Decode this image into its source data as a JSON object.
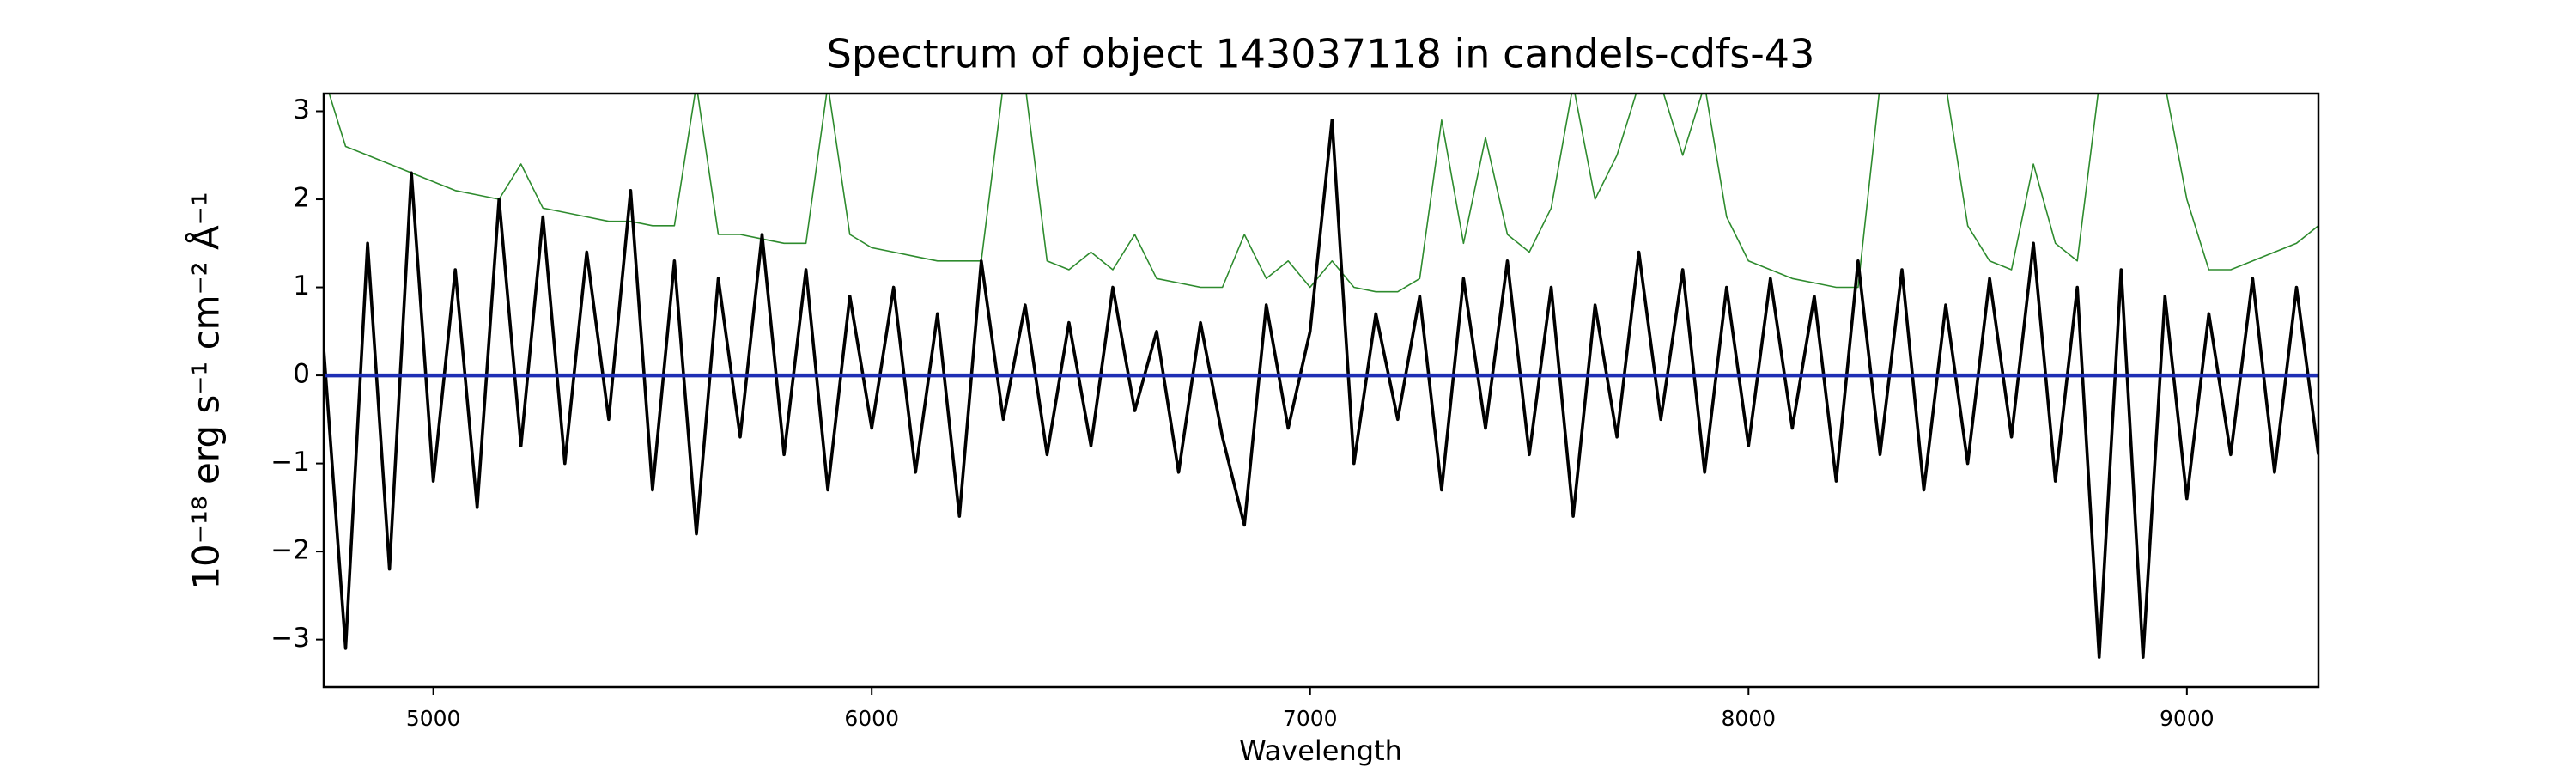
{
  "chart_data": {
    "type": "line",
    "title": "Spectrum of object 143037118 in candels-cdfs-43",
    "xlabel": "Wavelength",
    "ylabel": "10⁻¹⁸ erg s⁻¹ cm⁻² Å⁻¹",
    "x": [
      4750,
      4800,
      4850,
      4900,
      4950,
      5000,
      5050,
      5100,
      5150,
      5200,
      5250,
      5300,
      5350,
      5400,
      5450,
      5500,
      5550,
      5600,
      5650,
      5700,
      5750,
      5800,
      5850,
      5900,
      5950,
      6000,
      6050,
      6100,
      6150,
      6200,
      6250,
      6300,
      6350,
      6400,
      6450,
      6500,
      6550,
      6600,
      6650,
      6700,
      6750,
      6800,
      6850,
      6900,
      6950,
      7000,
      7050,
      7100,
      7150,
      7200,
      7250,
      7300,
      7350,
      7400,
      7450,
      7500,
      7550,
      7600,
      7650,
      7700,
      7750,
      7800,
      7850,
      7900,
      7950,
      8000,
      8050,
      8100,
      8150,
      8200,
      8250,
      8300,
      8350,
      8400,
      8450,
      8500,
      8550,
      8600,
      8650,
      8700,
      8750,
      8800,
      8850,
      8900,
      8950,
      9000,
      9050,
      9100,
      9150,
      9200,
      9250,
      9300
    ],
    "series": [
      {
        "color": "#2e8b2e",
        "width": 1.6,
        "values": [
          3.4,
          2.6,
          2.5,
          2.4,
          2.3,
          2.2,
          2.1,
          2.05,
          2.0,
          2.4,
          1.9,
          1.85,
          1.8,
          1.75,
          1.75,
          1.7,
          1.7,
          3.3,
          1.6,
          1.6,
          1.55,
          1.5,
          1.5,
          3.3,
          1.6,
          1.45,
          1.4,
          1.35,
          1.3,
          1.3,
          1.3,
          3.3,
          3.3,
          1.3,
          1.2,
          1.4,
          1.2,
          1.6,
          1.1,
          1.05,
          1.0,
          1.0,
          1.6,
          1.1,
          1.3,
          1.0,
          1.3,
          1.0,
          0.95,
          0.95,
          1.1,
          2.9,
          1.5,
          2.7,
          1.6,
          1.4,
          1.9,
          3.3,
          2.0,
          2.5,
          3.3,
          3.3,
          2.5,
          3.3,
          1.8,
          1.3,
          1.2,
          1.1,
          1.05,
          1.0,
          1.0,
          3.3,
          3.3,
          3.3,
          3.3,
          1.7,
          1.3,
          1.2,
          2.4,
          1.5,
          1.3,
          3.3,
          3.3,
          3.3,
          3.3,
          2.0,
          1.2,
          1.2,
          1.3,
          1.4,
          1.5,
          1.7
        ]
      },
      {
        "color": "#000000",
        "width": 3.6,
        "values": [
          0.3,
          -3.1,
          1.5,
          -2.2,
          2.3,
          -1.2,
          1.2,
          -1.5,
          2.0,
          -0.8,
          1.8,
          -1.0,
          1.4,
          -0.5,
          2.1,
          -1.3,
          1.3,
          -1.8,
          1.1,
          -0.7,
          1.6,
          -0.9,
          1.2,
          -1.3,
          0.9,
          -0.6,
          1.0,
          -1.1,
          0.7,
          -1.6,
          1.3,
          -0.5,
          0.8,
          -0.9,
          0.6,
          -0.8,
          1.0,
          -0.4,
          0.5,
          -1.1,
          0.6,
          -0.7,
          -1.7,
          0.8,
          -0.6,
          0.5,
          2.9,
          -1.0,
          0.7,
          -0.5,
          0.9,
          -1.3,
          1.1,
          -0.6,
          1.3,
          -0.9,
          1.0,
          -1.6,
          0.8,
          -0.7,
          1.4,
          -0.5,
          1.2,
          -1.1,
          1.0,
          -0.8,
          1.1,
          -0.6,
          0.9,
          -1.2,
          1.3,
          -0.9,
          1.2,
          -1.3,
          0.8,
          -1.0,
          1.1,
          -0.7,
          1.5,
          -1.2,
          1.0,
          -3.2,
          1.2,
          -3.2,
          0.9,
          -1.4,
          0.7,
          -0.9,
          1.1,
          -1.1,
          1.0,
          -0.9
        ]
      },
      {
        "color": "#1f2fb5",
        "width": 4.5,
        "x": [
          4750,
          9300
        ],
        "values": [
          0,
          0
        ]
      }
    ],
    "xlim": [
      4750,
      9300
    ],
    "xticks": [
      5000,
      6000,
      7000,
      8000,
      9000
    ],
    "ylim": [
      -3.54,
      3.2
    ],
    "yticks": [
      {
        "value": -3,
        "label": "−3"
      },
      {
        "value": -2,
        "label": "−2"
      },
      {
        "value": -1,
        "label": "−1"
      },
      0,
      1,
      2,
      3
    ],
    "grid": false
  }
}
